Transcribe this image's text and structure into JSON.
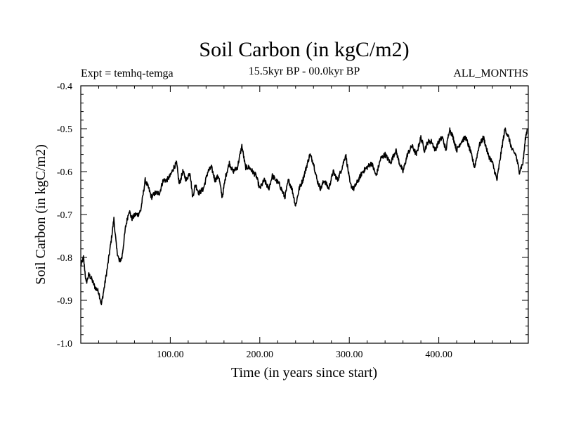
{
  "chart_data": {
    "type": "line",
    "title": "Soil Carbon (in kgC/m2)",
    "left_string": "Expt = temhq-temga",
    "center_string": "15.5kyr BP - 00.0kyr BP",
    "right_string": "ALL_MONTHS",
    "xlabel": "Time (in years since start)",
    "ylabel": "Soil Carbon (in kgC/m2)",
    "xlim": [
      0,
      500
    ],
    "ylim": [
      -1.0,
      -0.4
    ],
    "x_ticks": [
      100,
      200,
      300,
      400
    ],
    "x_tick_labels": [
      "100.00",
      "200.00",
      "300.00",
      "400.00"
    ],
    "y_ticks": [
      -1.0,
      -0.9,
      -0.8,
      -0.7,
      -0.6,
      -0.5,
      -0.4
    ],
    "y_tick_labels": [
      "-1.0",
      "-0.9",
      "-0.8",
      "-0.7",
      "-0.6",
      "-0.5",
      "-0.4"
    ],
    "series": [
      {
        "name": "Soil Carbon",
        "color": "#000000",
        "x": [
          0,
          3,
          6,
          9,
          12,
          16,
          20,
          23,
          27,
          30,
          34,
          37,
          40,
          43,
          46,
          50,
          54,
          57,
          61,
          64,
          67,
          72,
          76,
          79,
          83,
          88,
          92,
          96,
          100,
          104,
          107,
          110,
          114,
          118,
          122,
          125,
          128,
          132,
          137,
          142,
          146,
          150,
          154,
          158,
          162,
          166,
          170,
          175,
          180,
          184,
          188,
          192,
          196,
          200,
          205,
          210,
          214,
          218,
          222,
          228,
          232,
          236,
          240,
          244,
          248,
          252,
          256,
          260,
          264,
          268,
          272,
          277,
          282,
          287,
          292,
          296,
          301,
          305,
          310,
          315,
          320,
          325,
          330,
          335,
          340,
          346,
          352,
          356,
          360,
          365,
          370,
          375,
          380,
          384,
          388,
          392,
          396,
          400,
          404,
          408,
          412,
          416,
          420,
          425,
          430,
          435,
          440,
          445,
          450,
          455,
          460,
          465,
          470,
          474,
          478,
          482,
          486,
          490,
          494,
          497,
          499
        ],
        "values": [
          -0.82,
          -0.8,
          -0.86,
          -0.84,
          -0.85,
          -0.87,
          -0.88,
          -0.91,
          -0.86,
          -0.82,
          -0.76,
          -0.71,
          -0.78,
          -0.81,
          -0.8,
          -0.73,
          -0.69,
          -0.71,
          -0.7,
          -0.7,
          -0.69,
          -0.62,
          -0.64,
          -0.66,
          -0.65,
          -0.65,
          -0.62,
          -0.62,
          -0.61,
          -0.59,
          -0.58,
          -0.63,
          -0.6,
          -0.62,
          -0.6,
          -0.66,
          -0.63,
          -0.65,
          -0.64,
          -0.6,
          -0.59,
          -0.62,
          -0.61,
          -0.66,
          -0.61,
          -0.58,
          -0.6,
          -0.59,
          -0.54,
          -0.59,
          -0.59,
          -0.6,
          -0.61,
          -0.64,
          -0.62,
          -0.64,
          -0.61,
          -0.62,
          -0.63,
          -0.66,
          -0.62,
          -0.64,
          -0.68,
          -0.64,
          -0.62,
          -0.59,
          -0.56,
          -0.58,
          -0.62,
          -0.64,
          -0.62,
          -0.64,
          -0.6,
          -0.62,
          -0.59,
          -0.56,
          -0.63,
          -0.64,
          -0.62,
          -0.6,
          -0.59,
          -0.58,
          -0.61,
          -0.57,
          -0.56,
          -0.58,
          -0.55,
          -0.58,
          -0.6,
          -0.56,
          -0.54,
          -0.56,
          -0.52,
          -0.55,
          -0.53,
          -0.53,
          -0.55,
          -0.53,
          -0.52,
          -0.55,
          -0.5,
          -0.52,
          -0.55,
          -0.53,
          -0.52,
          -0.55,
          -0.59,
          -0.54,
          -0.52,
          -0.56,
          -0.58,
          -0.62,
          -0.55,
          -0.5,
          -0.52,
          -0.55,
          -0.56,
          -0.6,
          -0.58,
          -0.52,
          -0.5
        ]
      }
    ]
  }
}
